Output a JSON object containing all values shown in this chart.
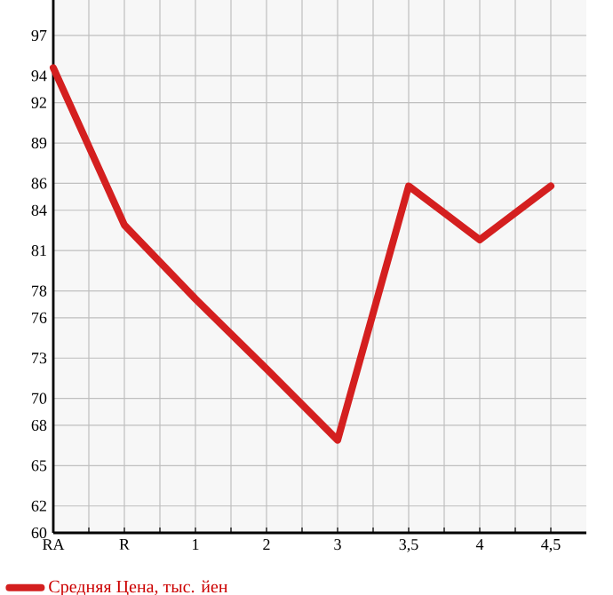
{
  "chart_data": {
    "type": "line",
    "categories": [
      "RA",
      "R",
      "1",
      "2",
      "3",
      "3,5",
      "4",
      "4,5"
    ],
    "series": [
      {
        "name": "Средняя Цена, тыс. йен",
        "color": "#d41f1f",
        "values": [
          94.6,
          82.9,
          77.4,
          72.2,
          66.9,
          85.8,
          81.8,
          85.8
        ]
      }
    ],
    "ylim": [
      60,
      99.64
    ],
    "yticks": [
      60,
      62,
      65,
      68,
      70,
      73,
      76,
      78,
      81,
      84,
      86,
      89,
      92,
      94,
      97
    ],
    "grid": true,
    "legend": "bottom left",
    "marker": "none",
    "line_style": "solid"
  }
}
